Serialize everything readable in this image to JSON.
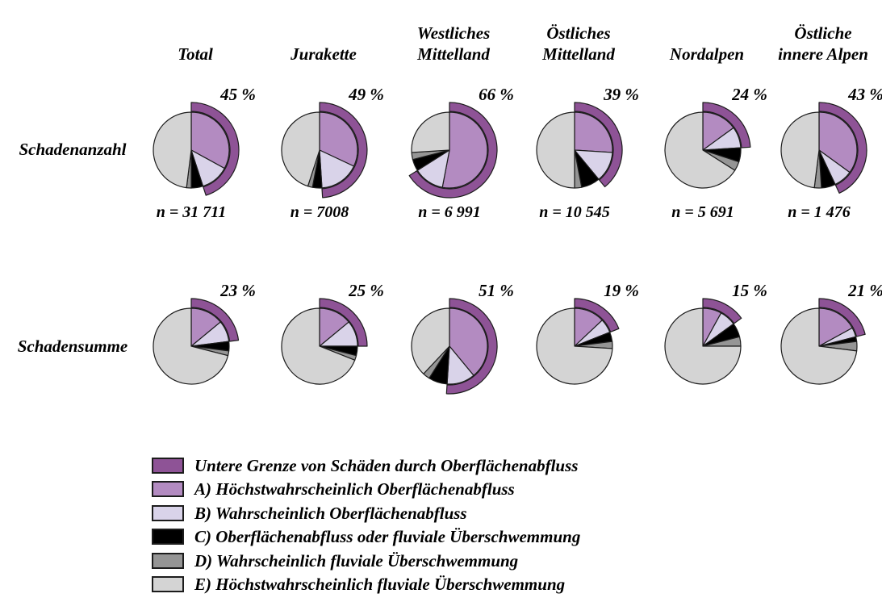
{
  "figure": {
    "row_labels": [
      "Schadenanzahl",
      "Schadensumme"
    ],
    "columns": [
      {
        "lines": [
          "Total"
        ]
      },
      {
        "lines": [
          "Jurakette"
        ]
      },
      {
        "lines": [
          "Westliches",
          "Mittelland"
        ]
      },
      {
        "lines": [
          "Östliches",
          "Mittelland"
        ]
      },
      {
        "lines": [
          "Nordalpen"
        ]
      },
      {
        "lines": [
          "Östliche",
          "innere Alpen"
        ]
      }
    ]
  },
  "chart_data": {
    "type": "pie",
    "description": "Two rows of six pie charts with an outer arc marking the lower bound of surface-runoff damages; percentages per region.",
    "segment_order": [
      "A",
      "B",
      "C",
      "D",
      "E"
    ],
    "rows": [
      {
        "label": "Schadenanzahl",
        "pies": [
          {
            "region": "Total",
            "arc_pct": 45,
            "arc_label": "45 %",
            "n_label": "n = 31 711",
            "segments": {
              "A": 33,
              "B": 12,
              "C": 5,
              "D": 2,
              "E": 48
            }
          },
          {
            "region": "Jurakette",
            "arc_pct": 49,
            "arc_label": "49 %",
            "n_label": "n = 7008",
            "segments": {
              "A": 32,
              "B": 17,
              "C": 4,
              "D": 2,
              "E": 45
            }
          },
          {
            "region": "Westliches Mittelland",
            "arc_pct": 66,
            "arc_label": "66 %",
            "n_label": "n = 6 991",
            "segments": {
              "A": 53,
              "B": 13,
              "C": 5,
              "D": 3,
              "E": 26
            }
          },
          {
            "region": "Östliches Mittelland",
            "arc_pct": 39,
            "arc_label": "39 %",
            "n_label": "n = 10 545",
            "segments": {
              "A": 26,
              "B": 13,
              "C": 8,
              "D": 3,
              "E": 50
            }
          },
          {
            "region": "Nordalpen",
            "arc_pct": 24,
            "arc_label": "24 %",
            "n_label": "n = 5 691",
            "segments": {
              "A": 15,
              "B": 9,
              "C": 6,
              "D": 4,
              "E": 66
            }
          },
          {
            "region": "Östliche innere Alpen",
            "arc_pct": 43,
            "arc_label": "43 %",
            "n_label": "n = 1 476",
            "segments": {
              "A": 35,
              "B": 8,
              "C": 6,
              "D": 3,
              "E": 48
            }
          }
        ]
      },
      {
        "label": "Schadensumme",
        "pies": [
          {
            "region": "Total",
            "arc_pct": 23,
            "arc_label": "23 %",
            "segments": {
              "A": 14,
              "B": 9,
              "C": 4,
              "D": 2,
              "E": 71
            }
          },
          {
            "region": "Jurakette",
            "arc_pct": 25,
            "arc_label": "25 %",
            "segments": {
              "A": 14,
              "B": 11,
              "C": 4,
              "D": 2,
              "E": 69
            }
          },
          {
            "region": "Westliches Mittelland",
            "arc_pct": 51,
            "arc_label": "51 %",
            "segments": {
              "A": 39,
              "B": 12,
              "C": 8,
              "D": 3,
              "E": 38
            }
          },
          {
            "region": "Östliches Mittelland",
            "arc_pct": 19,
            "arc_label": "19 %",
            "segments": {
              "A": 13,
              "B": 6,
              "C": 4,
              "D": 3,
              "E": 74
            }
          },
          {
            "region": "Nordalpen",
            "arc_pct": 15,
            "arc_label": "15 %",
            "segments": {
              "A": 8,
              "B": 7,
              "C": 6,
              "D": 4,
              "E": 75
            }
          },
          {
            "region": "Östliche innere Alpen",
            "arc_pct": 21,
            "arc_label": "21 %",
            "segments": {
              "A": 17,
              "B": 4,
              "C": 2,
              "D": 4,
              "E": 73
            }
          }
        ]
      }
    ],
    "legend": [
      {
        "key": "arc",
        "color": "#8e5396",
        "label": "Untere Grenze von Schäden durch Oberflächenabfluss"
      },
      {
        "key": "A",
        "color": "#b38bc1",
        "label": "A) Höchstwahrscheinlich Oberflächenabfluss"
      },
      {
        "key": "B",
        "color": "#d9d3e9",
        "label": "B) Wahrscheinlich Oberflächenabfluss"
      },
      {
        "key": "C",
        "color": "#000000",
        "label": "C) Oberflächenabfluss oder fluviale Überschwemmung"
      },
      {
        "key": "D",
        "color": "#959595",
        "label": "D) Wahrscheinlich fluviale Überschwemmung"
      },
      {
        "key": "E",
        "color": "#d4d4d4",
        "label": "E) Höchstwahrscheinlich fluviale Überschwemmung"
      }
    ],
    "outline_color": "#1c1c1c",
    "legend_position": "bottom-left"
  }
}
